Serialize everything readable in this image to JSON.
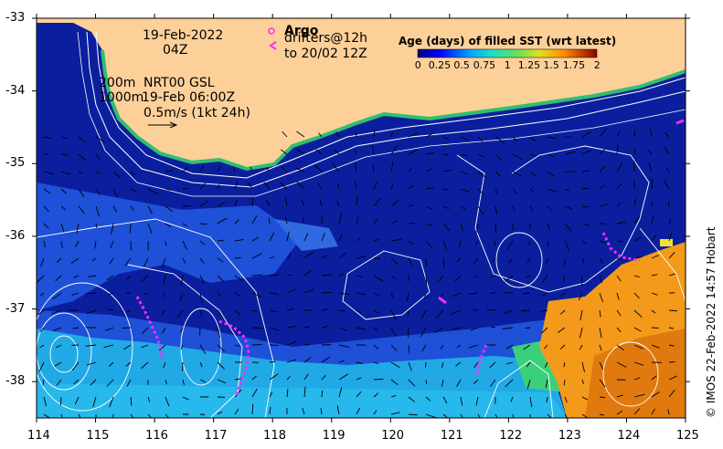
{
  "map": {
    "date_label": "19-Feb-2022",
    "time_label": "04Z",
    "argo_title": "Argo",
    "drifters_label": "drifters@12h",
    "drifters_to_label": "to 20/02 12Z",
    "contour_200m": "200m",
    "product_label": "NRT00 GSL",
    "contour_1000m": "1000m",
    "product_time": "19-Feb 06:00Z",
    "scale_arrow_label": "0.5m/s (1kt 24h)",
    "credit": "© IMOS 22-Feb-2022 14:57 Hobart",
    "lon_ticks": [
      "114",
      "115",
      "116",
      "117",
      "118",
      "119",
      "120",
      "121",
      "122",
      "123",
      "124",
      "125"
    ],
    "lat_ticks": [
      "-33",
      "-34",
      "-35",
      "-36",
      "-37",
      "-38"
    ],
    "extent": {
      "lon_min": 114,
      "lon_max": 125,
      "lat_min": -38.5,
      "lat_max": -33
    }
  },
  "colorbar": {
    "title": "Age (days) of filled SST (wrt latest)",
    "ticks": [
      "0",
      "0.25",
      "0.5",
      "0.75",
      "1",
      "1.25",
      "1.5",
      "1.75",
      "2"
    ],
    "range": [
      0,
      2
    ]
  },
  "colors": {
    "land": "#fdd09a",
    "ocean_deep": "#0b1f9e",
    "ocean_mid": "#1e50d8",
    "ocean_light": "#21a9e6",
    "age_orange": "#f39a1a",
    "age_dark_orange": "#e07a0e",
    "argo_drifters": "#ff28ff"
  }
}
